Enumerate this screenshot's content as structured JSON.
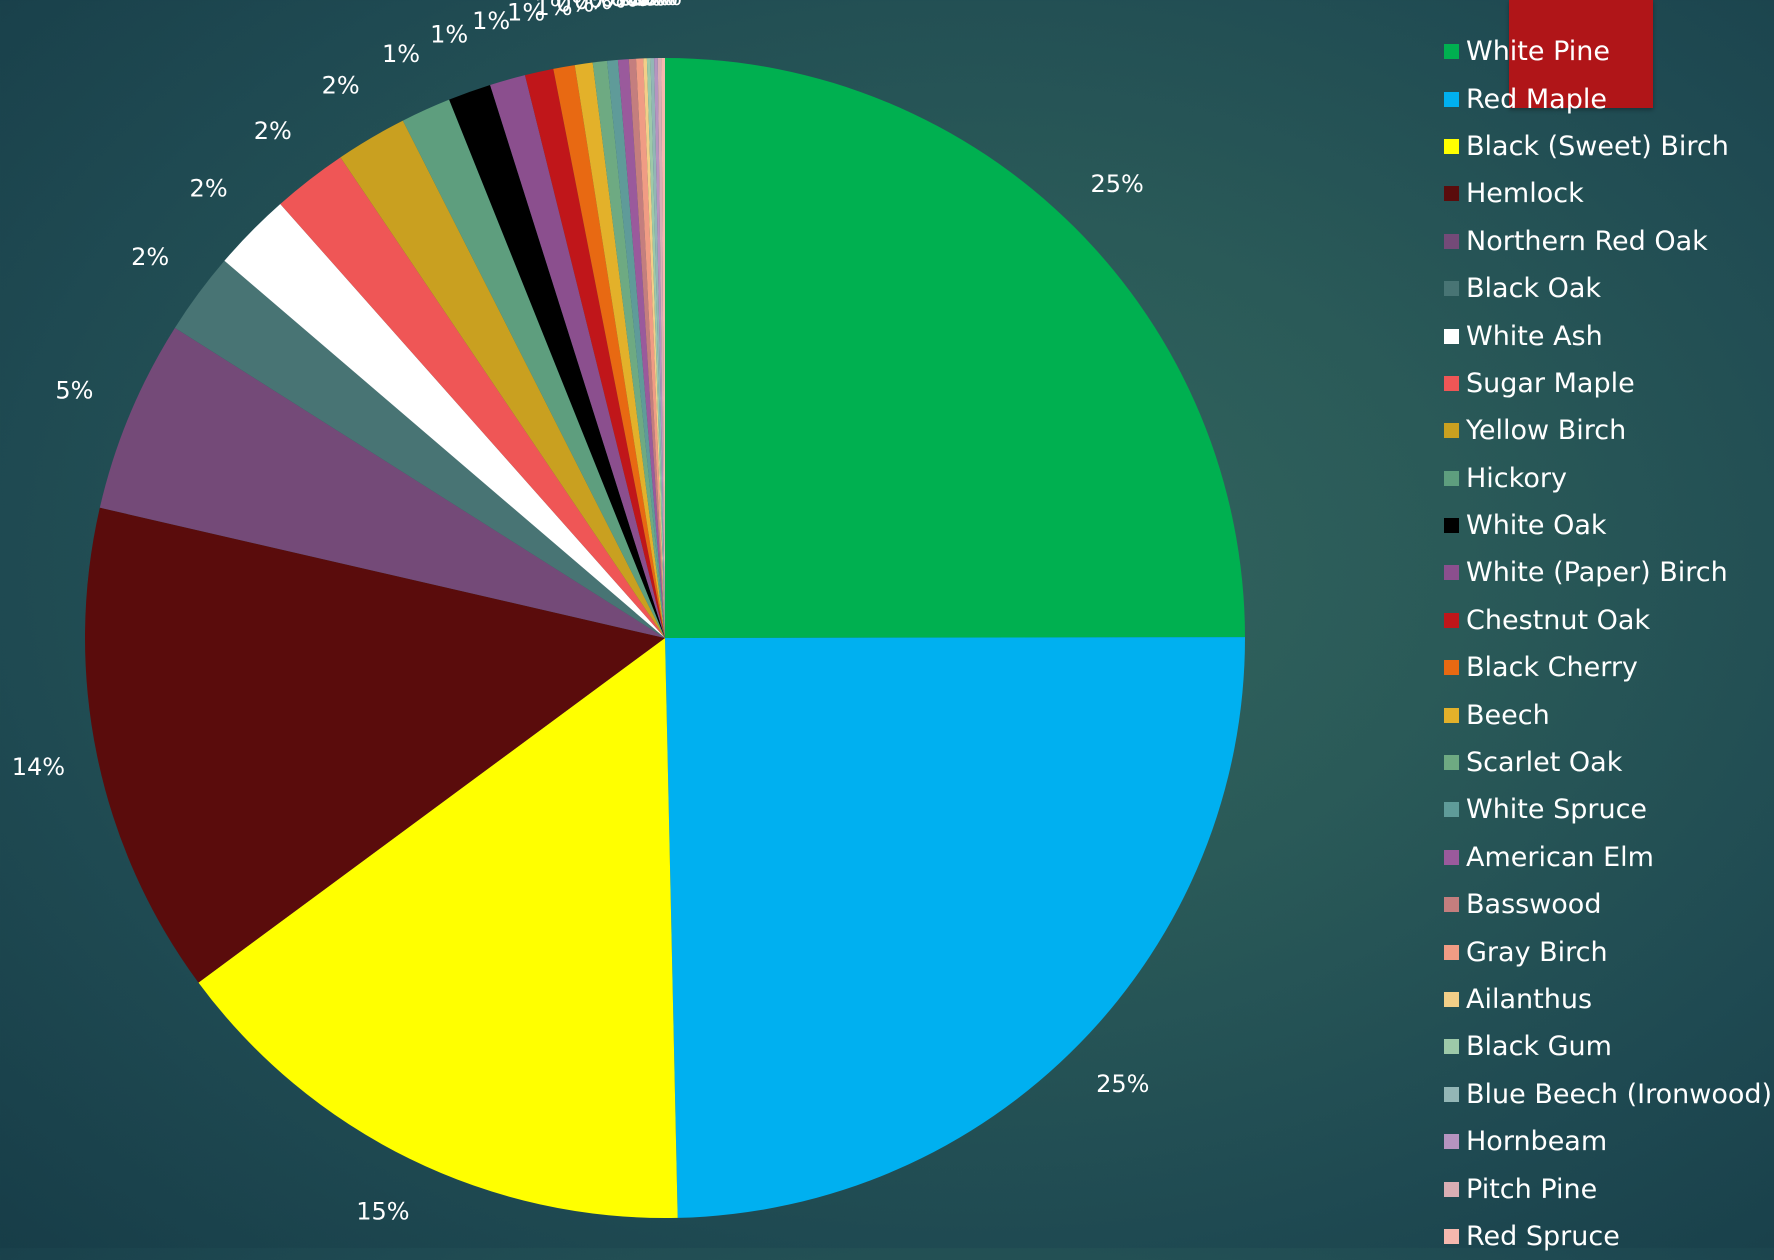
{
  "chart_data": {
    "type": "pie",
    "title": "",
    "start_angle_deg": 0,
    "direction": "clockwise",
    "legend_position": "right",
    "data_labels": "percent",
    "slices": [
      {
        "name": "White Pine",
        "value": 25.1,
        "label": "25%",
        "color": "#00b050"
      },
      {
        "name": "Red Maple",
        "value": 24.8,
        "label": "25%",
        "color": "#00b0f0"
      },
      {
        "name": "Black (Sweet) Birch",
        "value": 15.3,
        "label": "15%",
        "color": "#ffff00"
      },
      {
        "name": "Hemlock",
        "value": 13.8,
        "label": "14%",
        "color": "#5a0c0c"
      },
      {
        "name": "Northern Red Oak",
        "value": 5.4,
        "label": "5%",
        "color": "#744a78"
      },
      {
        "name": "Black Oak",
        "value": 2.3,
        "label": "2%",
        "color": "#487474"
      },
      {
        "name": "White Ash",
        "value": 2.2,
        "label": "2%",
        "color": "#ffffff"
      },
      {
        "name": "Sugar Maple",
        "value": 2.1,
        "label": "2%",
        "color": "#ef5656"
      },
      {
        "name": "Yellow Birch",
        "value": 2.0,
        "label": "2%",
        "color": "#c9a020"
      },
      {
        "name": "Hickory",
        "value": 1.4,
        "label": "1%",
        "color": "#5e9e7e"
      },
      {
        "name": "White Oak",
        "value": 1.2,
        "label": "1%",
        "color": "#000000"
      },
      {
        "name": "White (Paper) Birch",
        "value": 1.0,
        "label": "1%",
        "color": "#8b4f8e"
      },
      {
        "name": "Chestnut Oak",
        "value": 0.8,
        "label": "1%",
        "color": "#c0161a"
      },
      {
        "name": "Black Cherry",
        "value": 0.6,
        "label": "1%",
        "color": "#e86912"
      },
      {
        "name": "Beech",
        "value": 0.5,
        "label": "0%",
        "color": "#e3b12a"
      },
      {
        "name": "Scarlet Oak",
        "value": 0.4,
        "label": "0%",
        "color": "#6eaa82"
      },
      {
        "name": "White Spruce",
        "value": 0.3,
        "label": "0%",
        "color": "#5f9b99"
      },
      {
        "name": "American Elm",
        "value": 0.3,
        "label": "0%",
        "color": "#9a5a9c"
      },
      {
        "name": "Basswood",
        "value": 0.2,
        "label": "0%",
        "color": "#c47e7e"
      },
      {
        "name": "Gray Birch",
        "value": 0.2,
        "label": "0%",
        "color": "#f09c84"
      },
      {
        "name": "Ailanthus",
        "value": 0.1,
        "label": "0%",
        "color": "#f2cf88"
      },
      {
        "name": "Black Gum",
        "value": 0.1,
        "label": "0%",
        "color": "#9dc9a9"
      },
      {
        "name": "Blue Beech (Ironwood)",
        "value": 0.1,
        "label": "0%",
        "color": "#93b6b6"
      },
      {
        "name": "Hornbeam",
        "value": 0.1,
        "label": "0%",
        "color": "#b594c0"
      },
      {
        "name": "Pitch Pine",
        "value": 0.1,
        "label": "0%",
        "color": "#d9aeb4"
      },
      {
        "name": "Red Spruce",
        "value": 0.1,
        "label": "0%",
        "color": "#f5b8ae"
      }
    ]
  }
}
